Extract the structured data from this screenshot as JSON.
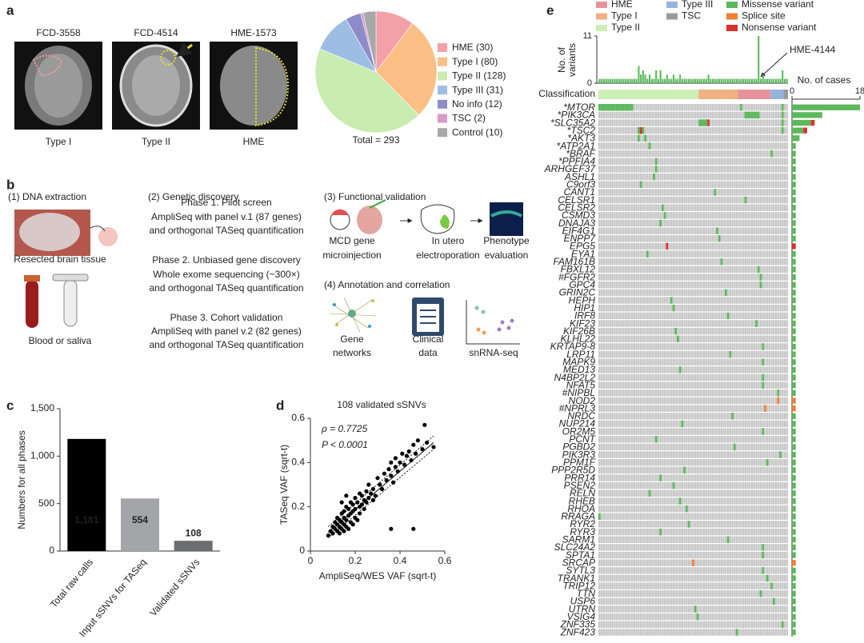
{
  "figure": {
    "panel_labels": [
      "a",
      "b",
      "c",
      "d",
      "e"
    ],
    "mri": [
      {
        "title": "FCD-3558",
        "caption": "Type I"
      },
      {
        "title": "FCD-4514",
        "caption": "Type II"
      },
      {
        "title": "HME-1573",
        "caption": "HME"
      }
    ],
    "dna": {
      "title": "(1) DNA extraction",
      "tissue": "Resected brain tissue",
      "blood": "Blood or saliva"
    },
    "discovery": {
      "title": "(2) Genetic discovery",
      "phases": [
        [
          "Phase 1. Pilot screen",
          "AmpliSeq with panel v.1 (87 genes)",
          "and orthogonal TASeq quantification"
        ],
        [
          "Phase 2. Unbiased gene discovery",
          "Whole exome sequencing (~300×)",
          "and orthogonal TASeq quantification"
        ],
        [
          "Phase 3. Cohort validation",
          "AmpliSeq with panel v.2 (82 genes)",
          "and orthogonal TASeq quantification"
        ]
      ]
    },
    "functional": {
      "title": "(3) Functional validation",
      "steps": [
        [
          "MCD gene",
          "microinjection"
        ],
        [
          "In utero",
          "electroporation"
        ],
        [
          "Phenotype",
          "evaluation"
        ]
      ]
    },
    "annotation": {
      "title": "(4) Annotation and correlation",
      "items": [
        [
          "Gene",
          "networks"
        ],
        [
          "Clinical",
          "data"
        ],
        [
          "snRNA-seq"
        ]
      ]
    }
  },
  "chart_data": [
    {
      "type": "pie",
      "categories": [
        "HME (30)",
        "Type I (80)",
        "Type II (128)",
        "Type III (31)",
        "No info (12)",
        "TSC (2)",
        "Control (10)"
      ],
      "values": [
        30,
        80,
        128,
        31,
        12,
        2,
        10
      ],
      "colors": [
        "#f4a0a8",
        "#fbbf85",
        "#c9ecb1",
        "#9ebde3",
        "#8e8cc8",
        "#d69bc9",
        "#a8a8a8"
      ],
      "total_label": "Total = 293"
    },
    {
      "type": "bar",
      "categories": [
        "Total raw calls",
        "Input sSNVs for TASeq",
        "Validated sSNVs"
      ],
      "values": [
        1181,
        554,
        108
      ],
      "value_labels": [
        "1,181",
        "554",
        "108"
      ],
      "colors": [
        "#000000",
        "#a3a5a8",
        "#6d6e70"
      ],
      "ylabel": "Numbers for all phases",
      "ylim": [
        0,
        1500
      ],
      "yticks": [
        0,
        500,
        {
          "value": 1000,
          "label": "1,000"
        },
        {
          "value": 1500,
          "label": "1,500"
        }
      ]
    },
    {
      "type": "scatter",
      "title": "108 validated sSNVs",
      "annotations": [
        "ρ = 0.7725",
        "P < 0.0001"
      ],
      "xlabel": "AmpliSeq/WES VAF (sqrt-t)",
      "ylabel": "TASeq VAF (sqrt-t)",
      "xlim": [
        0,
        0.6
      ],
      "xticks": [
        0,
        0.2,
        0.4,
        0.6
      ],
      "ylim": [
        0,
        0.6
      ],
      "yticks": [
        0,
        0.2,
        0.4,
        0.6
      ],
      "x": [
        0.08,
        0.09,
        0.1,
        0.1,
        0.11,
        0.11,
        0.12,
        0.12,
        0.12,
        0.13,
        0.13,
        0.13,
        0.14,
        0.14,
        0.14,
        0.15,
        0.15,
        0.15,
        0.15,
        0.16,
        0.16,
        0.16,
        0.17,
        0.17,
        0.17,
        0.18,
        0.18,
        0.18,
        0.19,
        0.19,
        0.19,
        0.2,
        0.2,
        0.2,
        0.21,
        0.21,
        0.22,
        0.22,
        0.22,
        0.23,
        0.23,
        0.24,
        0.24,
        0.25,
        0.25,
        0.26,
        0.26,
        0.27,
        0.28,
        0.28,
        0.29,
        0.3,
        0.31,
        0.32,
        0.33,
        0.34,
        0.35,
        0.36,
        0.36,
        0.37,
        0.38,
        0.38,
        0.39,
        0.4,
        0.41,
        0.42,
        0.43,
        0.44,
        0.45,
        0.46,
        0.47,
        0.48,
        0.5,
        0.51,
        0.52,
        0.55,
        0.36,
        0.46,
        0.14,
        0.16
      ],
      "y": [
        0.07,
        0.09,
        0.08,
        0.11,
        0.1,
        0.13,
        0.09,
        0.12,
        0.15,
        0.08,
        0.11,
        0.14,
        0.1,
        0.13,
        0.17,
        0.09,
        0.12,
        0.15,
        0.18,
        0.11,
        0.14,
        0.2,
        0.1,
        0.16,
        0.19,
        0.13,
        0.17,
        0.22,
        0.12,
        0.18,
        0.21,
        0.15,
        0.19,
        0.24,
        0.14,
        0.22,
        0.17,
        0.2,
        0.26,
        0.21,
        0.25,
        0.19,
        0.23,
        0.22,
        0.27,
        0.24,
        0.3,
        0.26,
        0.23,
        0.28,
        0.25,
        0.33,
        0.3,
        0.28,
        0.35,
        0.32,
        0.37,
        0.34,
        0.4,
        0.31,
        0.38,
        0.42,
        0.36,
        0.4,
        0.44,
        0.39,
        0.43,
        0.45,
        0.41,
        0.48,
        0.44,
        0.5,
        0.46,
        0.57,
        0.49,
        0.47,
        0.1,
        0.1,
        0.22,
        0.25
      ],
      "fit": {
        "x": [
          0.08,
          0.55
        ],
        "y": [
          0.085,
          0.49
        ]
      },
      "ci_upper": {
        "x": [
          0.08,
          0.55
        ],
        "y": [
          0.11,
          0.52
        ]
      },
      "ci_lower": {
        "x": [
          0.08,
          0.55
        ],
        "y": [
          0.06,
          0.46
        ]
      }
    },
    {
      "type": "oncoprint",
      "classification_label": "Classification",
      "classes": [
        {
          "name": "HME",
          "color": "#e8939b",
          "cases": 15
        },
        {
          "name": "Type I",
          "color": "#efb182",
          "cases": 18
        },
        {
          "name": "Type II",
          "color": "#cdeeb5",
          "cases": 46
        },
        {
          "name": "Type III",
          "color": "#94b5de",
          "cases": 6
        },
        {
          "name": "TSC",
          "color": "#9a9a9a",
          "cases": 2
        }
      ],
      "variant_axis": {
        "label": [
          "No. of",
          "variants"
        ],
        "ylim": [
          0,
          11
        ],
        "yticks": [
          0,
          11
        ]
      },
      "variants_per_case": [
        1,
        1,
        1,
        1,
        1,
        1,
        1,
        1,
        1,
        1,
        1,
        1,
        1,
        1,
        1,
        1,
        1,
        1,
        4,
        2,
        3,
        2,
        1,
        2,
        1,
        1,
        3,
        1,
        3,
        1,
        1,
        2,
        1,
        1,
        2,
        1,
        1,
        2,
        1,
        1,
        1,
        1,
        1,
        1,
        1,
        1,
        1,
        1,
        1,
        1,
        2,
        1,
        1,
        1,
        1,
        1,
        1,
        1,
        1,
        1,
        1,
        1,
        1,
        1,
        1,
        1,
        1,
        1,
        1,
        1,
        1,
        1,
        1,
        11,
        1,
        2,
        1,
        1,
        1,
        1,
        1,
        1,
        1,
        1,
        3,
        1,
        1
      ],
      "annotation": "HME-4144",
      "cases_axis": {
        "label": "No. of cases",
        "xlim": [
          0,
          18
        ],
        "xticks": [
          0,
          18
        ]
      },
      "genes": [
        "*MTOR",
        "*PIK3CA",
        "*SLC35A2",
        "*TSC2",
        "*AKT3",
        "*ATP2A1",
        "*BRAF",
        "*PPFIA4",
        "ARHGEF37",
        "ASHL1",
        "C9orf3",
        "CANT1",
        "CELSR1",
        "CELSR2",
        "CSMD3",
        "DNAJA3",
        "EIF4G1",
        "ENPP7",
        "EPG5",
        "EYA1",
        "FAM161B",
        "FBXL12",
        "#FGFR2",
        "GPC4",
        "GRIN2C",
        "HEPH",
        "HIP1",
        "IRF8",
        "KIF23",
        "KIF26B",
        "KLHL22",
        "KRTAP9-8",
        "LRP11",
        "MAPK9",
        "MED13",
        "N4BP2L2",
        "NFAT5",
        "#NIPBL",
        "NOD2",
        "#NPRL3",
        "NRDC",
        "NUP214",
        "OR2M5",
        "PCNT",
        "PGBD2",
        "PIK3R3",
        "PPM1F",
        "PPP2R5D",
        "PRR14",
        "PSEN2",
        "RELN",
        "RHEB",
        "RHOA",
        "RRAGA",
        "RYR2",
        "RYR3",
        "SARM1",
        "SLC24A2",
        "SPTA1",
        "SRCAP",
        "SYTL3",
        "TRANK1",
        "TRIP12",
        "TTN",
        "USP6",
        "UTRN",
        "VSIG4",
        "ZNF335",
        "ZNF423"
      ],
      "gray_genes": [
        0,
        1,
        2,
        3,
        4,
        6,
        51
      ],
      "series": [
        {
          "name": "Missense variant",
          "color": "#5cb85c",
          "cells": [
            [
              0,
              0
            ],
            [
              0,
              1
            ],
            [
              0,
              2
            ],
            [
              0,
              3
            ],
            [
              0,
              4
            ],
            [
              0,
              5
            ],
            [
              0,
              6
            ],
            [
              0,
              7
            ],
            [
              0,
              8
            ],
            [
              0,
              9
            ],
            [
              0,
              10
            ],
            [
              0,
              11
            ],
            [
              0,
              12
            ],
            [
              0,
              13
            ],
            [
              0,
              14
            ],
            [
              0,
              15
            ],
            [
              0,
              65
            ],
            [
              0,
              84
            ],
            [
              1,
              67
            ],
            [
              1,
              68
            ],
            [
              1,
              69
            ],
            [
              1,
              70
            ],
            [
              1,
              71
            ],
            [
              1,
              72
            ],
            [
              1,
              73
            ],
            [
              1,
              84
            ],
            [
              2,
              46
            ],
            [
              2,
              47
            ],
            [
              2,
              48
            ],
            [
              2,
              49
            ],
            [
              2,
              84
            ],
            [
              3,
              18
            ],
            [
              3,
              20
            ],
            [
              3,
              84
            ],
            [
              4,
              18
            ],
            [
              4,
              21
            ],
            [
              5,
              23
            ],
            [
              6,
              79
            ],
            [
              7,
              26
            ],
            [
              8,
              26
            ],
            [
              9,
              25
            ],
            [
              10,
              19
            ],
            [
              11,
              53
            ],
            [
              12,
              67
            ],
            [
              13,
              29
            ],
            [
              14,
              30
            ],
            [
              15,
              28
            ],
            [
              16,
              54
            ],
            [
              17,
              55
            ],
            [
              19,
              22
            ],
            [
              20,
              56
            ],
            [
              21,
              73
            ],
            [
              22,
              74
            ],
            [
              23,
              74
            ],
            [
              24,
              58
            ],
            [
              25,
              33
            ],
            [
              26,
              34
            ],
            [
              27,
              59
            ],
            [
              28,
              72
            ],
            [
              29,
              35
            ],
            [
              30,
              36
            ],
            [
              31,
              75
            ],
            [
              32,
              60
            ],
            [
              33,
              75
            ],
            [
              34,
              37
            ],
            [
              35,
              75
            ],
            [
              36,
              75
            ],
            [
              37,
              82
            ],
            [
              40,
              61
            ],
            [
              41,
              38
            ],
            [
              42,
              75
            ],
            [
              43,
              26
            ],
            [
              44,
              62
            ],
            [
              45,
              83
            ],
            [
              46,
              77
            ],
            [
              47,
              39
            ],
            [
              48,
              28
            ],
            [
              49,
              34
            ],
            [
              50,
              23
            ],
            [
              51,
              37
            ],
            [
              52,
              40
            ],
            [
              53,
              0
            ],
            [
              54,
              41
            ],
            [
              55,
              28
            ],
            [
              56,
              59
            ],
            [
              57,
              75
            ],
            [
              58,
              75
            ],
            [
              60,
              75
            ],
            [
              61,
              77
            ],
            [
              62,
              79
            ],
            [
              63,
              74
            ],
            [
              64,
              80
            ],
            [
              65,
              44
            ],
            [
              66,
              45
            ],
            [
              67,
              84
            ],
            [
              68,
              63
            ]
          ],
          "values": [
            18,
            8,
            5,
            3,
            2,
            1,
            1,
            1,
            1,
            1,
            1,
            1,
            1,
            1,
            1,
            1,
            1,
            1,
            0,
            1,
            1,
            1,
            1,
            1,
            1,
            1,
            1,
            1,
            1,
            1,
            1,
            1,
            1,
            1,
            1,
            1,
            1,
            1,
            0,
            0,
            1,
            1,
            1,
            1,
            1,
            1,
            1,
            1,
            1,
            1,
            1,
            1,
            1,
            1,
            1,
            1,
            1,
            1,
            1,
            0,
            1,
            1,
            1,
            1,
            1,
            1,
            1,
            1,
            1
          ]
        },
        {
          "name": "Splice site",
          "color": "#f08030",
          "cells": [
            [
              38,
              82
            ],
            [
              39,
              76
            ],
            [
              59,
              43
            ]
          ],
          "values": [
            0,
            0,
            0,
            0,
            0,
            0,
            0,
            0,
            0,
            0,
            0,
            0,
            0,
            0,
            0,
            0,
            0,
            0,
            0,
            0,
            0,
            0,
            0,
            0,
            0,
            0,
            0,
            0,
            0,
            0,
            0,
            0,
            0,
            0,
            0,
            0,
            0,
            0,
            1,
            1,
            0,
            0,
            0,
            0,
            0,
            0,
            0,
            0,
            0,
            0,
            0,
            0,
            0,
            0,
            0,
            0,
            0,
            0,
            0,
            1,
            0,
            0,
            0,
            0,
            0,
            0,
            0,
            0,
            0
          ]
        },
        {
          "name": "Nonsense variant",
          "color": "#d9322e",
          "cells": [
            [
              2,
              50
            ],
            [
              3,
              19
            ],
            [
              18,
              31
            ]
          ],
          "values": [
            0,
            0,
            1,
            1,
            0,
            0,
            0,
            0,
            0,
            0,
            0,
            0,
            0,
            0,
            0,
            0,
            0,
            0,
            1,
            0,
            0,
            0,
            0,
            0,
            0,
            0,
            0,
            0,
            0,
            0,
            0,
            0,
            0,
            0,
            0,
            0,
            0,
            0,
            0,
            0,
            0,
            0,
            0,
            0,
            0,
            0,
            0,
            0,
            0,
            0,
            0,
            0,
            0,
            0,
            0,
            0,
            0,
            0,
            0,
            0,
            0,
            0,
            0,
            0,
            0,
            0,
            0,
            0,
            0
          ]
        }
      ]
    }
  ]
}
